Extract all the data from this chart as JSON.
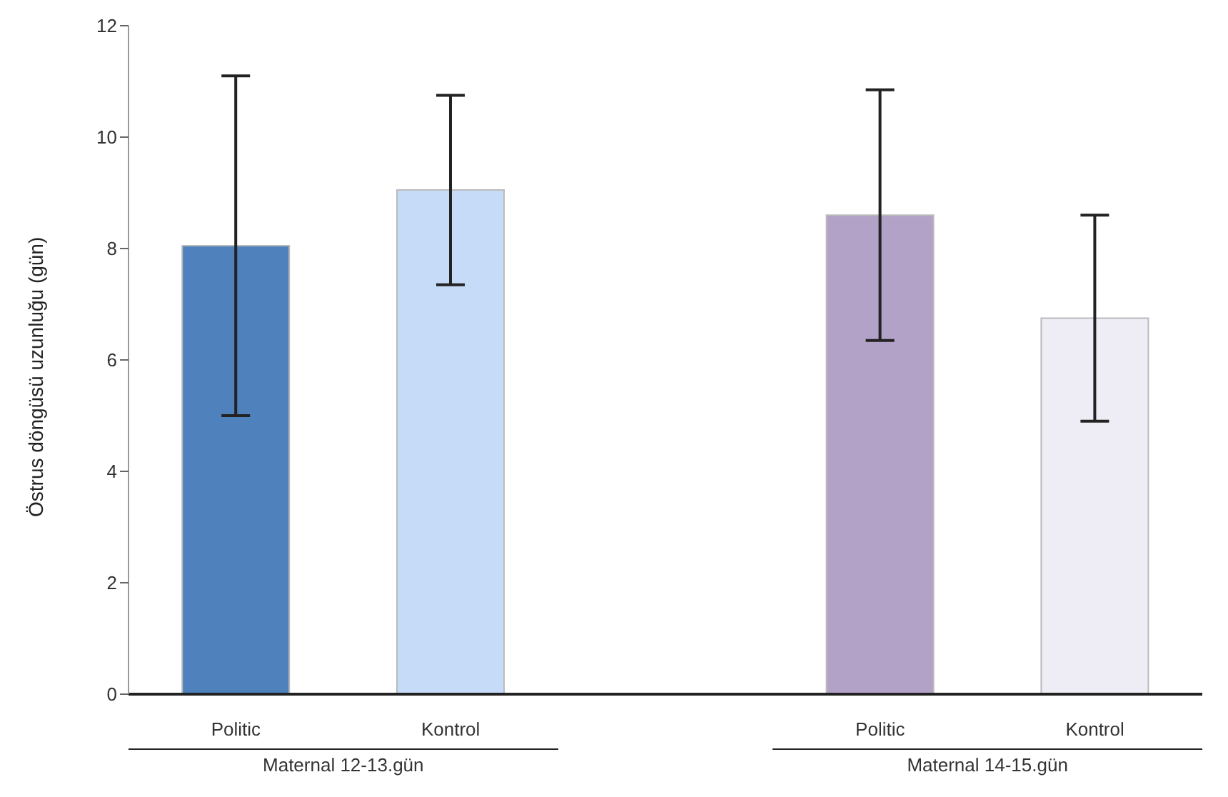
{
  "chart_data": {
    "type": "bar",
    "ylabel": "Östrus döngüsü uzunluğu (gün)",
    "categories": [
      "Politic",
      "Kontrol",
      null,
      "Politic",
      "Kontrol"
    ],
    "values": [
      8.05,
      9.05,
      null,
      8.6,
      6.75
    ],
    "errors": [
      3.05,
      1.7,
      null,
      2.25,
      1.85
    ],
    "colors": [
      "#4f81bd",
      "#c6dbf7",
      null,
      "#b3a2c7",
      "#eeecf4"
    ],
    "ylim": [
      0,
      12
    ],
    "yticks": [
      0,
      2,
      4,
      6,
      8,
      10,
      12
    ],
    "annotations": [
      "Maternal 12-13.gün",
      "Maternal 14-15.gün"
    ]
  }
}
